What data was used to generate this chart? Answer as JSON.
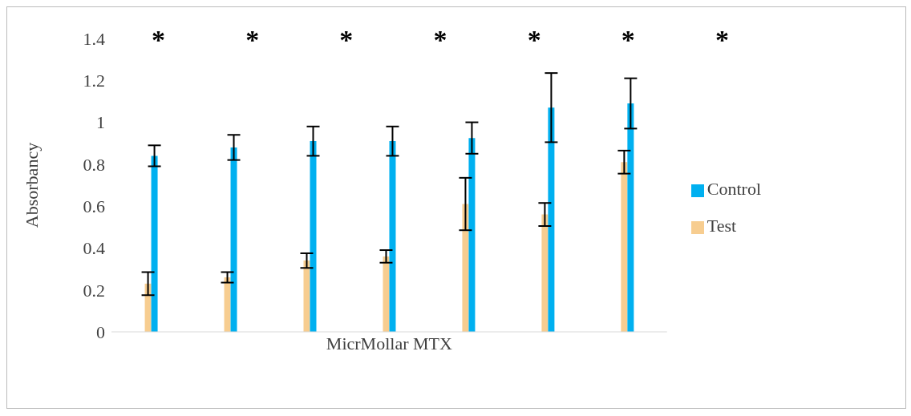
{
  "chart_data": {
    "type": "bar",
    "xlabel": "MicrMollar MTX",
    "ylabel": "Absorbancy",
    "categories": [
      null,
      null,
      null,
      null,
      null,
      null,
      null
    ],
    "series": [
      {
        "name": "Test",
        "color": "#f7cd90",
        "values": [
          0.23,
          0.26,
          0.34,
          0.36,
          0.61,
          0.56,
          0.81
        ],
        "errors": [
          0.055,
          0.025,
          0.035,
          0.03,
          0.125,
          0.055,
          0.055
        ]
      },
      {
        "name": "Control",
        "color": "#00b0f0",
        "values": [
          0.84,
          0.88,
          0.91,
          0.91,
          0.925,
          1.07,
          1.09
        ],
        "errors": [
          0.05,
          0.06,
          0.07,
          0.07,
          0.075,
          0.165,
          0.12
        ]
      }
    ],
    "annotations": [
      "*",
      "*",
      "*",
      "*",
      "*",
      "*",
      "*"
    ],
    "ylim": [
      0,
      1.4
    ],
    "yticks": [
      0,
      0.2,
      0.4,
      0.6,
      0.8,
      1,
      1.2,
      1.4
    ],
    "grid": false,
    "legend": "right"
  }
}
